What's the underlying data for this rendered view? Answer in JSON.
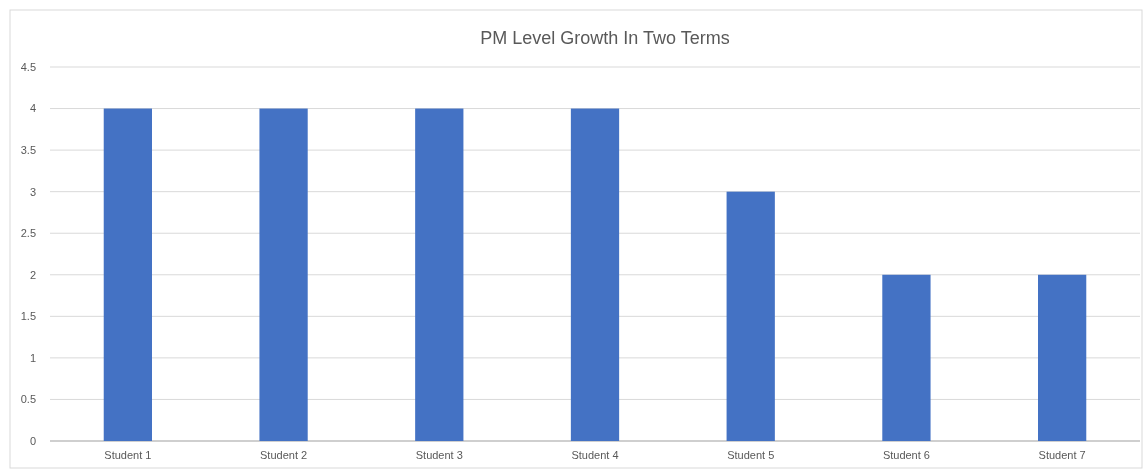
{
  "chart_data": {
    "type": "bar",
    "title": "PM Level Growth In Two Terms",
    "categories": [
      "Student 1",
      "Student 2",
      "Student 3",
      "Student 4",
      "Student 5",
      "Student 6",
      "Student 7"
    ],
    "values": [
      4,
      4,
      4,
      4,
      3,
      2,
      2
    ],
    "color": "#4472c4",
    "ylim": [
      0,
      4.5
    ],
    "yticks": [
      0,
      0.5,
      1,
      1.5,
      2,
      2.5,
      3,
      3.5,
      4,
      4.5
    ],
    "grid": "y"
  }
}
